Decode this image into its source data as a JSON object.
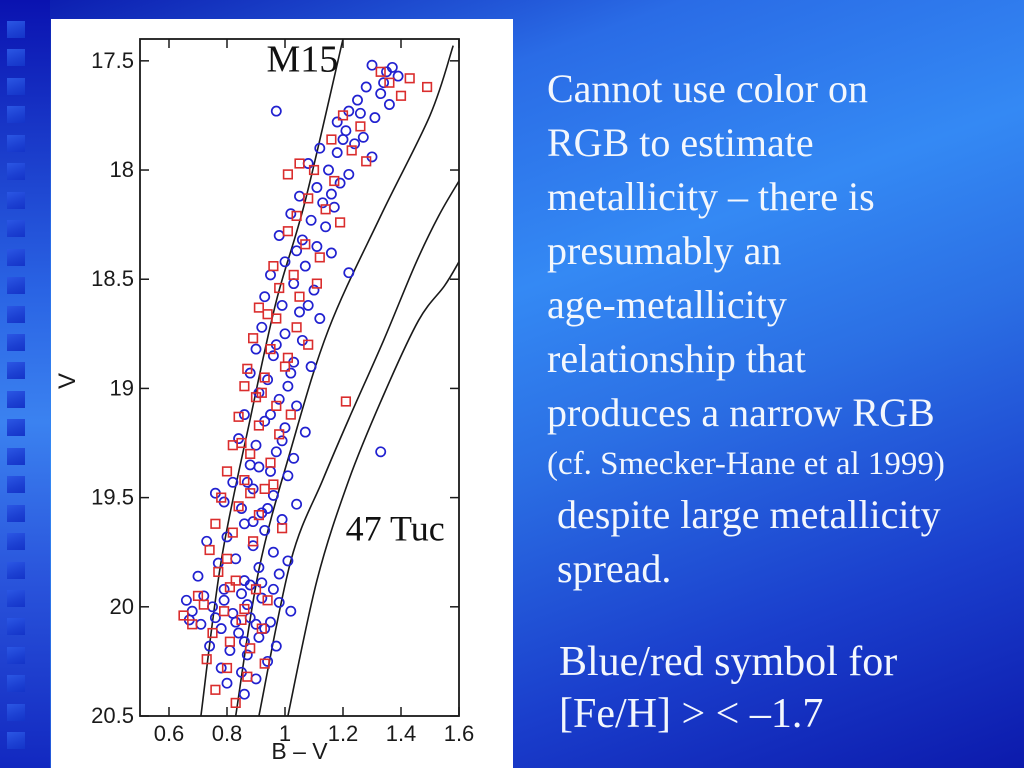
{
  "slide": {
    "right_text": {
      "lines": [
        "Cannot use color on",
        "RGB to estimate",
        "metallicity – there is",
        "presumably an",
        "age-metallicity",
        "relationship that",
        "produces a narrow RGB"
      ],
      "citation": "(cf. Smecker-Hane et al 1999)",
      "tail_lines": [
        "despite large metallicity",
        "spread."
      ]
    },
    "caption": {
      "lines": [
        "Blue/red symbol for",
        "[Fe/H] > < –1.7"
      ]
    },
    "sidebar": {
      "square_count": 26
    },
    "colors": {
      "text": "#f3f7fd",
      "blue_marker": "#2121d0",
      "red_marker": "#da2d2d",
      "axis": "#1a1a1a"
    }
  },
  "chart_data": {
    "type": "scatter",
    "title": "",
    "xlabel": "B – V",
    "ylabel": "V",
    "xlim": [
      0.5,
      1.6
    ],
    "ylim": [
      17.4,
      20.5
    ],
    "y_axis_direction": "inverted-magnitude",
    "grid": false,
    "legend_position": "none",
    "xticks": {
      "values": [
        0.6,
        0.8,
        1.0,
        1.2,
        1.4,
        1.6
      ],
      "labels": [
        "0.6",
        "0.8",
        "1",
        "1.2",
        "1.4",
        "1.6"
      ]
    },
    "yticks": {
      "values": [
        17.5,
        18.0,
        18.5,
        19.0,
        19.5,
        20.0,
        20.5
      ],
      "labels": [
        "17.5",
        "18",
        "18.5",
        "19",
        "19.5",
        "20",
        "20.5"
      ]
    },
    "annotations": [
      {
        "text": "M15",
        "x": 1.06,
        "y": 17.49,
        "font_px": 38
      },
      {
        "text": "47 Tuc",
        "x": 1.38,
        "y": 19.64,
        "font_px": 36
      }
    ],
    "fiducials": [
      {
        "name": "fiducial-1-M15",
        "points": [
          [
            0.71,
            20.5
          ],
          [
            0.78,
            19.79
          ],
          [
            0.88,
            19.14
          ],
          [
            0.97,
            18.6
          ],
          [
            1.07,
            18.14
          ],
          [
            1.2,
            17.4
          ]
        ]
      },
      {
        "name": "fiducial-2",
        "points": [
          [
            0.83,
            20.5
          ],
          [
            0.91,
            19.83
          ],
          [
            1.02,
            19.28
          ],
          [
            1.15,
            18.73
          ],
          [
            1.33,
            18.21
          ],
          [
            1.5,
            17.75
          ],
          [
            1.58,
            17.43
          ]
        ]
      },
      {
        "name": "fiducial-3",
        "points": [
          [
            0.91,
            20.5
          ],
          [
            1.02,
            19.79
          ],
          [
            1.13,
            19.42
          ],
          [
            1.22,
            19.14
          ],
          [
            1.34,
            18.78
          ],
          [
            1.45,
            18.43
          ],
          [
            1.53,
            18.21
          ],
          [
            1.6,
            18.05
          ]
        ]
      },
      {
        "name": "fiducial-4-47Tuc",
        "points": [
          [
            1.01,
            20.5
          ],
          [
            1.11,
            19.88
          ],
          [
            1.22,
            19.42
          ],
          [
            1.34,
            19.03
          ],
          [
            1.46,
            18.69
          ],
          [
            1.55,
            18.53
          ],
          [
            1.6,
            18.42
          ]
        ]
      }
    ],
    "series": [
      {
        "name": "blue-circles",
        "legend": "[Fe/H] > –1.7",
        "marker": "circle",
        "color": "#2121d0",
        "points": [
          [
            1.3,
            17.52
          ],
          [
            1.35,
            17.55
          ],
          [
            1.37,
            17.53
          ],
          [
            1.39,
            17.57
          ],
          [
            1.28,
            17.62
          ],
          [
            1.33,
            17.65
          ],
          [
            1.25,
            17.68
          ],
          [
            1.36,
            17.7
          ],
          [
            1.22,
            17.73
          ],
          [
            0.97,
            17.73
          ],
          [
            1.31,
            17.76
          ],
          [
            1.18,
            17.78
          ],
          [
            1.21,
            17.82
          ],
          [
            1.27,
            17.85
          ],
          [
            1.24,
            17.88
          ],
          [
            1.12,
            17.9
          ],
          [
            1.18,
            17.92
          ],
          [
            1.3,
            17.94
          ],
          [
            1.08,
            17.97
          ],
          [
            1.15,
            18.0
          ],
          [
            1.22,
            18.02
          ],
          [
            1.19,
            18.06
          ],
          [
            1.11,
            18.08
          ],
          [
            1.05,
            18.12
          ],
          [
            1.13,
            18.15
          ],
          [
            1.17,
            18.17
          ],
          [
            1.02,
            18.2
          ],
          [
            1.09,
            18.23
          ],
          [
            1.14,
            18.26
          ],
          [
            0.98,
            18.3
          ],
          [
            1.06,
            18.32
          ],
          [
            1.11,
            18.35
          ],
          [
            1.16,
            18.38
          ],
          [
            1.0,
            18.42
          ],
          [
            1.07,
            18.44
          ],
          [
            0.95,
            18.48
          ],
          [
            1.03,
            18.52
          ],
          [
            1.1,
            18.55
          ],
          [
            0.93,
            18.58
          ],
          [
            1.22,
            18.47
          ],
          [
            0.99,
            18.62
          ],
          [
            1.05,
            18.65
          ],
          [
            1.12,
            18.68
          ],
          [
            0.92,
            18.72
          ],
          [
            1.0,
            18.75
          ],
          [
            1.06,
            18.78
          ],
          [
            0.9,
            18.82
          ],
          [
            0.96,
            18.85
          ],
          [
            1.03,
            18.88
          ],
          [
            1.09,
            18.9
          ],
          [
            0.88,
            18.93
          ],
          [
            0.94,
            18.96
          ],
          [
            1.01,
            18.99
          ],
          [
            0.91,
            19.02
          ],
          [
            0.98,
            19.05
          ],
          [
            1.04,
            19.08
          ],
          [
            0.86,
            19.12
          ],
          [
            0.93,
            19.15
          ],
          [
            1.0,
            19.18
          ],
          [
            1.07,
            19.2
          ],
          [
            0.84,
            19.23
          ],
          [
            0.9,
            19.26
          ],
          [
            0.97,
            19.29
          ],
          [
            1.33,
            19.29
          ],
          [
            1.03,
            19.32
          ],
          [
            0.88,
            19.35
          ],
          [
            0.95,
            19.38
          ],
          [
            1.01,
            19.4
          ],
          [
            0.82,
            19.43
          ],
          [
            0.89,
            19.46
          ],
          [
            0.96,
            19.49
          ],
          [
            0.79,
            19.52
          ],
          [
            0.85,
            19.55
          ],
          [
            0.92,
            19.57
          ],
          [
            0.99,
            19.6
          ],
          [
            0.76,
            19.48
          ],
          [
            1.04,
            19.53
          ],
          [
            0.86,
            19.62
          ],
          [
            0.93,
            19.65
          ],
          [
            0.8,
            19.68
          ],
          [
            0.73,
            19.7
          ],
          [
            0.89,
            19.72
          ],
          [
            0.96,
            19.75
          ],
          [
            0.83,
            19.78
          ],
          [
            0.77,
            19.8
          ],
          [
            0.91,
            19.82
          ],
          [
            0.98,
            19.85
          ],
          [
            0.7,
            19.86
          ],
          [
            0.86,
            19.88
          ],
          [
            1.01,
            19.79
          ],
          [
            0.66,
            19.97
          ],
          [
            0.72,
            19.95
          ],
          [
            0.79,
            19.92
          ],
          [
            0.85,
            19.94
          ],
          [
            0.92,
            19.96
          ],
          [
            0.98,
            19.98
          ],
          [
            0.68,
            20.02
          ],
          [
            0.75,
            20.0
          ],
          [
            0.82,
            20.03
          ],
          [
            0.88,
            20.05
          ],
          [
            0.95,
            20.07
          ],
          [
            0.71,
            20.08
          ],
          [
            0.78,
            20.1
          ],
          [
            0.84,
            20.12
          ],
          [
            0.91,
            20.14
          ],
          [
            0.67,
            20.06
          ],
          [
            1.02,
            20.02
          ],
          [
            0.74,
            20.18
          ],
          [
            0.81,
            20.2
          ],
          [
            0.87,
            20.22
          ],
          [
            0.94,
            20.25
          ],
          [
            0.78,
            20.28
          ],
          [
            0.85,
            20.3
          ],
          [
            0.97,
            20.18
          ],
          [
            0.8,
            20.35
          ],
          [
            0.9,
            20.33
          ],
          [
            0.86,
            20.4
          ],
          [
            0.87,
            19.99
          ],
          [
            0.9,
            20.08
          ],
          [
            0.83,
            20.07
          ],
          [
            0.76,
            20.05
          ],
          [
            0.88,
            19.9
          ],
          [
            0.93,
            20.1
          ],
          [
            0.79,
            19.97
          ],
          [
            0.86,
            20.16
          ],
          [
            0.92,
            19.89
          ],
          [
            0.96,
            19.92
          ],
          [
            0.89,
            19.61
          ],
          [
            0.94,
            19.55
          ],
          [
            0.87,
            19.43
          ],
          [
            0.91,
            19.36
          ],
          [
            0.99,
            19.24
          ],
          [
            0.95,
            19.12
          ],
          [
            1.02,
            18.93
          ],
          [
            0.97,
            18.8
          ],
          [
            1.08,
            18.62
          ],
          [
            1.2,
            17.86
          ],
          [
            1.26,
            17.74
          ],
          [
            1.34,
            17.6
          ],
          [
            1.16,
            18.11
          ],
          [
            1.04,
            18.37
          ]
        ]
      },
      {
        "name": "red-squares",
        "legend": "[Fe/H] < –1.7",
        "marker": "square",
        "color": "#da2d2d",
        "points": [
          [
            1.43,
            17.58
          ],
          [
            1.49,
            17.62
          ],
          [
            1.4,
            17.66
          ],
          [
            1.33,
            17.55
          ],
          [
            1.36,
            17.6
          ],
          [
            1.2,
            17.75
          ],
          [
            1.26,
            17.8
          ],
          [
            1.16,
            17.86
          ],
          [
            1.23,
            17.91
          ],
          [
            1.28,
            17.96
          ],
          [
            1.1,
            18.0
          ],
          [
            1.17,
            18.05
          ],
          [
            1.05,
            17.97
          ],
          [
            1.08,
            18.13
          ],
          [
            1.14,
            18.18
          ],
          [
            1.19,
            18.24
          ],
          [
            1.01,
            18.28
          ],
          [
            1.07,
            18.34
          ],
          [
            1.12,
            18.4
          ],
          [
            0.96,
            18.44
          ],
          [
            1.03,
            18.48
          ],
          [
            0.98,
            18.54
          ],
          [
            1.05,
            18.58
          ],
          [
            0.91,
            18.63
          ],
          [
            0.97,
            18.68
          ],
          [
            1.04,
            18.72
          ],
          [
            0.89,
            18.77
          ],
          [
            0.95,
            18.82
          ],
          [
            1.01,
            18.86
          ],
          [
            0.87,
            18.91
          ],
          [
            0.93,
            18.95
          ],
          [
            0.86,
            18.99
          ],
          [
            1.08,
            18.8
          ],
          [
            0.9,
            19.04
          ],
          [
            0.97,
            19.08
          ],
          [
            0.84,
            19.13
          ],
          [
            0.91,
            19.17
          ],
          [
            0.98,
            19.21
          ],
          [
            0.82,
            19.26
          ],
          [
            0.88,
            19.3
          ],
          [
            0.95,
            19.34
          ],
          [
            1.21,
            19.06
          ],
          [
            0.8,
            19.38
          ],
          [
            1.02,
            19.12
          ],
          [
            0.86,
            19.42
          ],
          [
            0.93,
            19.46
          ],
          [
            0.78,
            19.5
          ],
          [
            0.84,
            19.54
          ],
          [
            0.91,
            19.58
          ],
          [
            0.76,
            19.62
          ],
          [
            0.82,
            19.66
          ],
          [
            0.89,
            19.7
          ],
          [
            0.74,
            19.74
          ],
          [
            0.8,
            19.78
          ],
          [
            0.96,
            19.44
          ],
          [
            0.99,
            19.64
          ],
          [
            0.7,
            19.95
          ],
          [
            0.77,
            19.84
          ],
          [
            0.83,
            19.88
          ],
          [
            0.9,
            19.92
          ],
          [
            0.72,
            19.99
          ],
          [
            0.79,
            20.02
          ],
          [
            0.85,
            20.06
          ],
          [
            0.92,
            20.1
          ],
          [
            0.68,
            20.08
          ],
          [
            0.75,
            20.12
          ],
          [
            0.81,
            20.16
          ],
          [
            0.88,
            20.19
          ],
          [
            0.94,
            19.97
          ],
          [
            0.65,
            20.04
          ],
          [
            0.73,
            20.24
          ],
          [
            0.8,
            20.28
          ],
          [
            0.87,
            20.32
          ],
          [
            0.76,
            20.38
          ],
          [
            0.83,
            20.44
          ],
          [
            0.93,
            20.26
          ],
          [
            0.85,
            19.25
          ],
          [
            0.92,
            19.02
          ],
          [
            1.0,
            18.9
          ],
          [
            0.88,
            19.48
          ],
          [
            0.81,
            19.91
          ],
          [
            0.86,
            20.01
          ],
          [
            0.94,
            18.66
          ],
          [
            1.11,
            18.52
          ],
          [
            1.04,
            18.21
          ],
          [
            1.01,
            18.02
          ]
        ]
      }
    ]
  }
}
